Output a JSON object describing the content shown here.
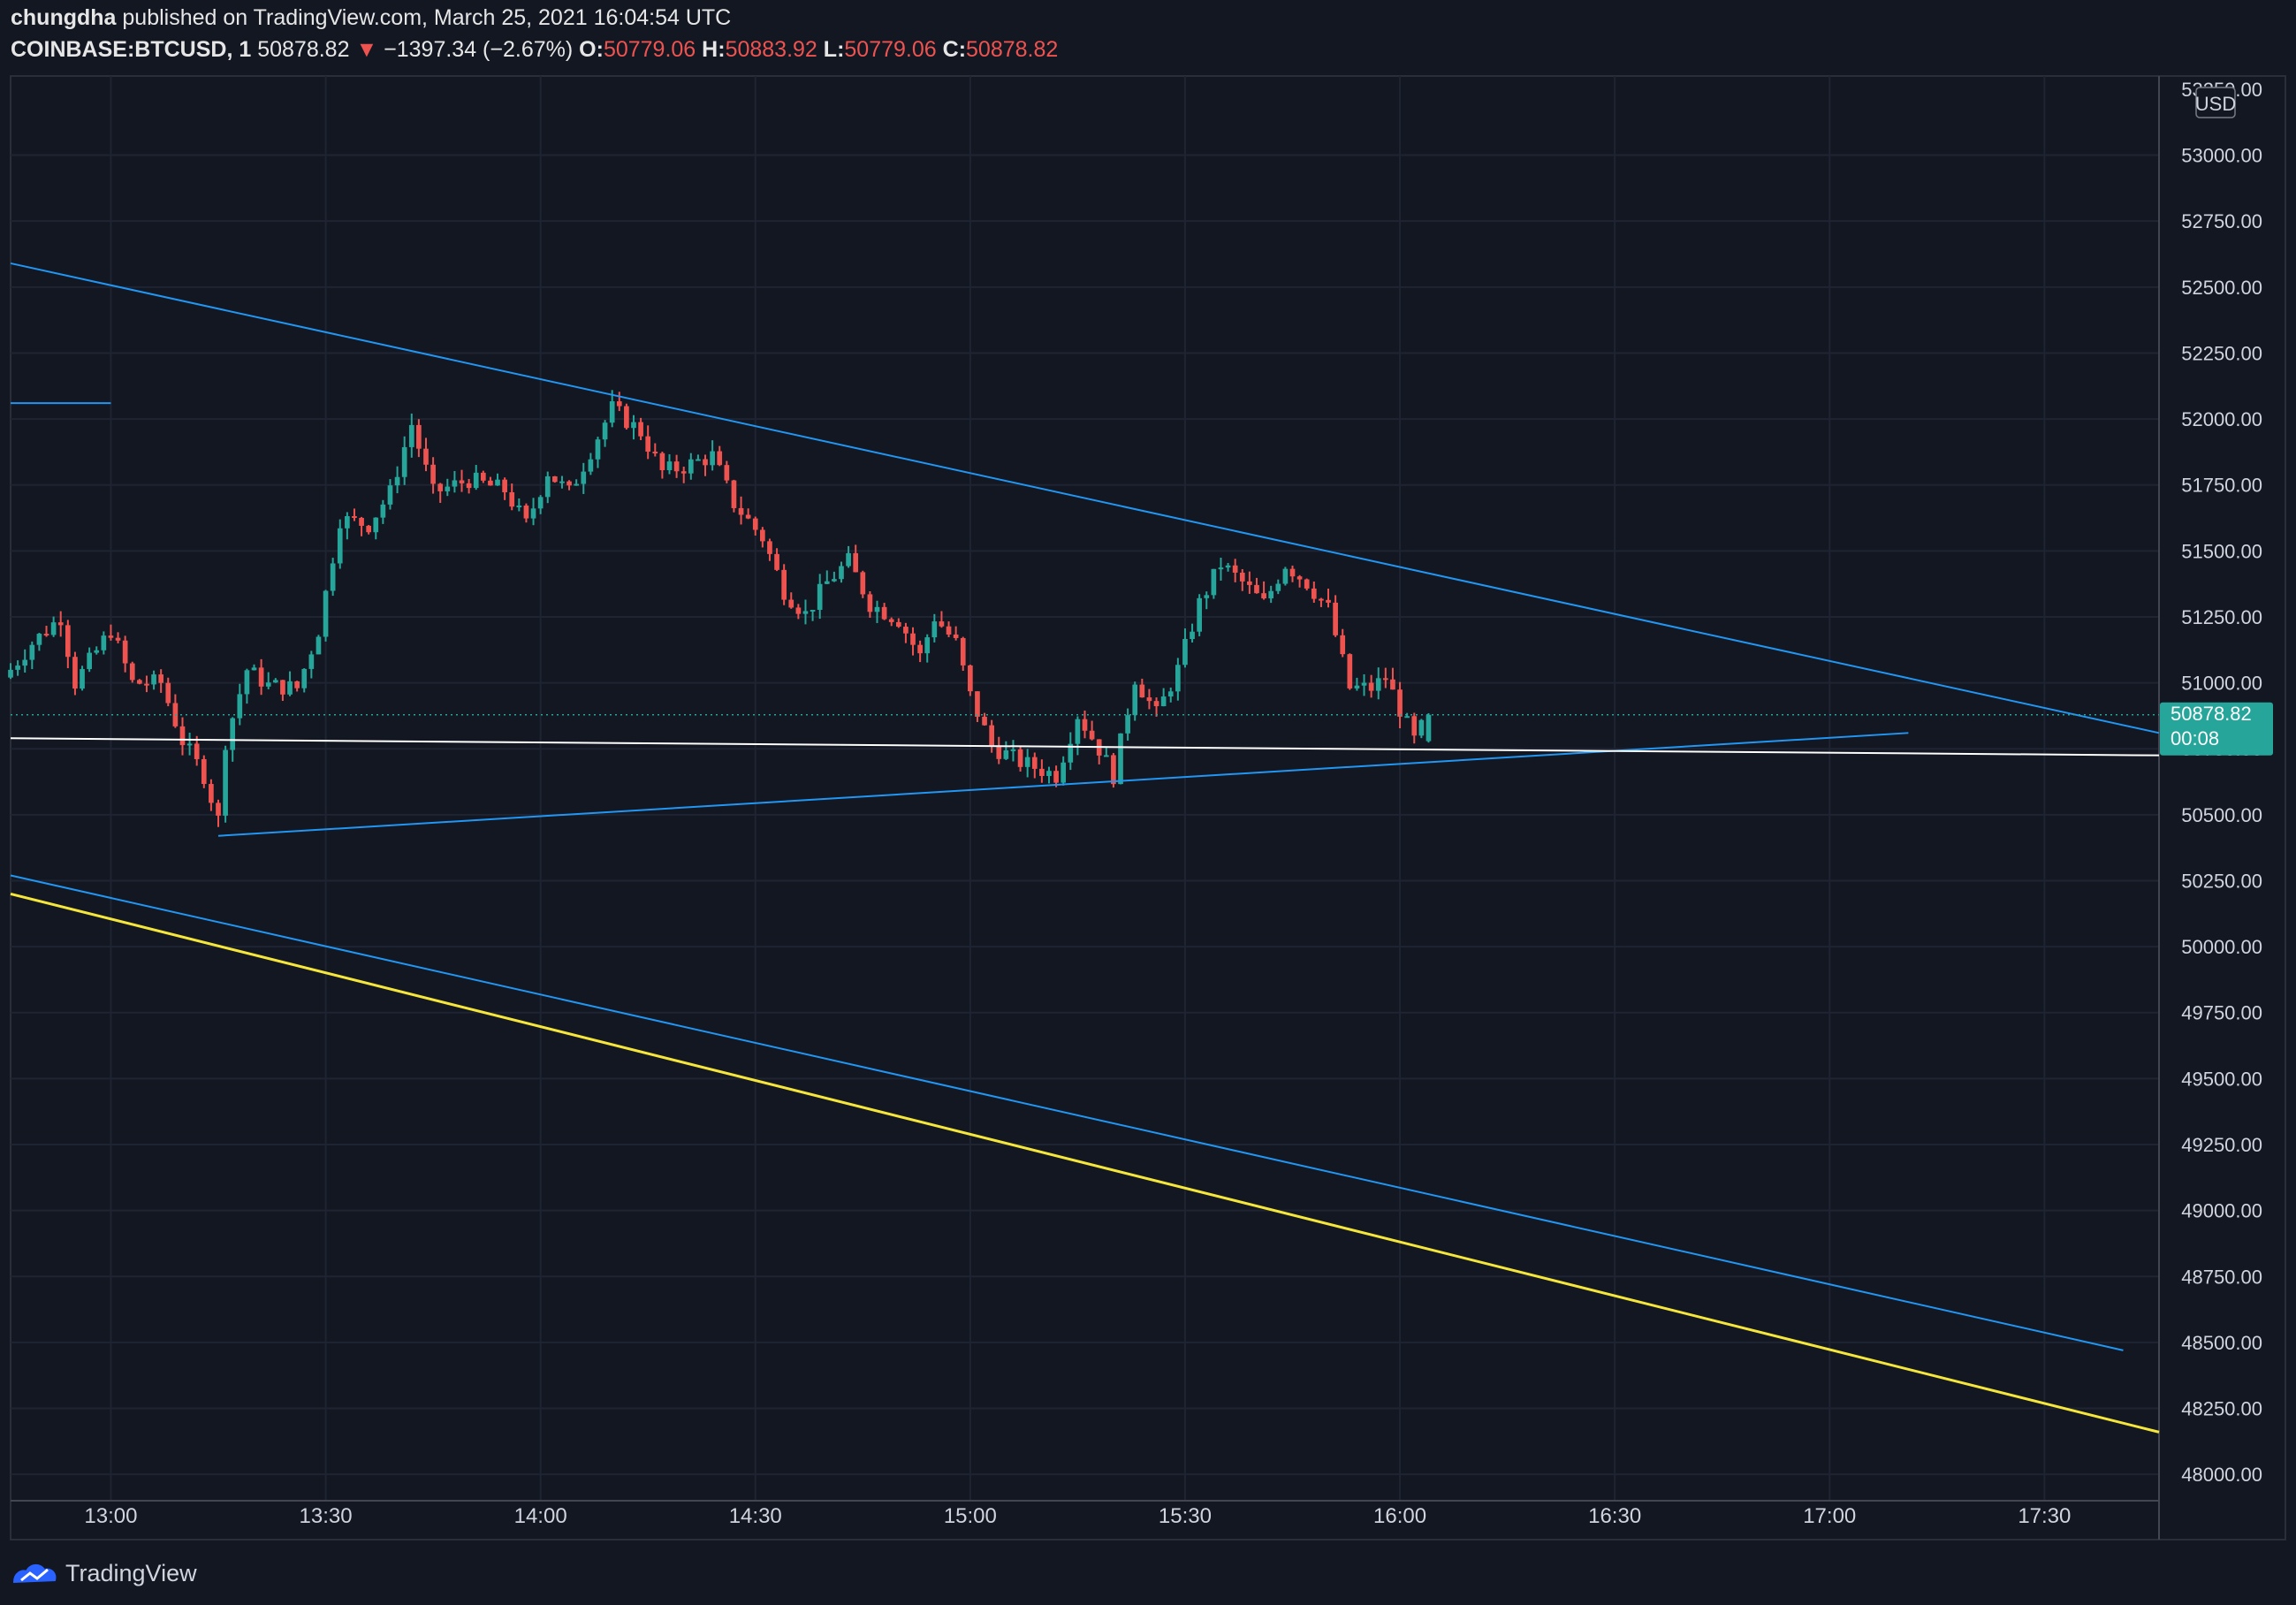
{
  "header": {
    "publisher": "chungdha",
    "published_text": "published on TradingView.com, March 25, 2021 16:04:54 UTC",
    "symbol": "COINBASE:BTCUSD, 1",
    "last": "50878.82",
    "change_arrow": "▼",
    "change": "−1397.34 (−2.67%)",
    "o_label": "O:",
    "o_value": "50779.06",
    "h_label": "H:",
    "h_value": "50883.92",
    "l_label": "L:",
    "l_value": "50779.06",
    "c_label": "C:",
    "c_value": "50878.82"
  },
  "price_scale": {
    "currency": "USD",
    "current_price": "50878.82",
    "countdown": "00:08",
    "top_partial_label": "53250.00"
  },
  "footer": {
    "brand": "TradingView"
  },
  "colors": {
    "background": "#131722",
    "up": "#26a69a",
    "down": "#ef5350",
    "trendline": "#2196f3",
    "yellow_line": "#f5e63c",
    "white_line": "#ffffff"
  },
  "chart_data": {
    "type": "candlestick",
    "symbol": "COINBASE:BTCUSD",
    "interval": "1",
    "currency": "USD",
    "x_start": "12:46",
    "x_end": "17:46",
    "x_ticks": [
      "13:00",
      "13:30",
      "14:00",
      "14:30",
      "15:00",
      "15:30",
      "16:00",
      "16:30",
      "17:00",
      "17:30"
    ],
    "ylim": [
      47900,
      53300
    ],
    "y_ticks": [
      48000,
      48250,
      48500,
      48750,
      49000,
      49250,
      49500,
      49750,
      50000,
      50250,
      50500,
      50750,
      51000,
      51250,
      51500,
      51750,
      52000,
      52250,
      52500,
      52750,
      53000
    ],
    "y_tick_labels": [
      "48000.00",
      "48250.00",
      "48500.00",
      "48750.00",
      "49000.00",
      "49250.00",
      "49500.00",
      "49750.00",
      "50000.00",
      "50250.00",
      "50500.00",
      "50750.00",
      "51000.00",
      "51250.00",
      "51500.00",
      "51750.00",
      "52000.00",
      "52250.00",
      "52500.00",
      "52750.00",
      "53000.00"
    ],
    "last_price": 50878.82,
    "ohlc_anchors": [
      {
        "time": "12:46",
        "close": 51050
      },
      {
        "time": "12:49",
        "close": 51150
      },
      {
        "time": "12:53",
        "close": 51250
      },
      {
        "time": "12:55",
        "close": 51000
      },
      {
        "time": "13:00",
        "close": 51200
      },
      {
        "time": "13:03",
        "close": 51000
      },
      {
        "time": "13:07",
        "close": 51000
      },
      {
        "time": "13:10",
        "close": 50780
      },
      {
        "time": "13:13",
        "close": 50650
      },
      {
        "time": "13:15",
        "close": 50480
      },
      {
        "time": "13:16",
        "close": 50780
      },
      {
        "time": "13:19",
        "close": 51050
      },
      {
        "time": "13:22",
        "close": 50990
      },
      {
        "time": "13:26",
        "close": 50980
      },
      {
        "time": "13:29",
        "close": 51200
      },
      {
        "time": "13:32",
        "close": 51620
      },
      {
        "time": "13:36",
        "close": 51600
      },
      {
        "time": "13:39",
        "close": 51720
      },
      {
        "time": "13:42",
        "close": 51980
      },
      {
        "time": "13:45",
        "close": 51720
      },
      {
        "time": "13:50",
        "close": 51770
      },
      {
        "time": "13:55",
        "close": 51730
      },
      {
        "time": "13:58",
        "close": 51600
      },
      {
        "time": "14:01",
        "close": 51800
      },
      {
        "time": "14:04",
        "close": 51720
      },
      {
        "time": "14:07",
        "close": 51880
      },
      {
        "time": "14:10",
        "close": 52040
      },
      {
        "time": "14:14",
        "close": 51950
      },
      {
        "time": "14:17",
        "close": 51800
      },
      {
        "time": "14:20",
        "close": 51820
      },
      {
        "time": "14:24",
        "close": 51860
      },
      {
        "time": "14:27",
        "close": 51680
      },
      {
        "time": "14:31",
        "close": 51550
      },
      {
        "time": "14:34",
        "close": 51350
      },
      {
        "time": "14:37",
        "close": 51260
      },
      {
        "time": "14:40",
        "close": 51380
      },
      {
        "time": "14:43",
        "close": 51460
      },
      {
        "time": "14:46",
        "close": 51300
      },
      {
        "time": "14:50",
        "close": 51240
      },
      {
        "time": "14:53",
        "close": 51100
      },
      {
        "time": "14:55",
        "close": 51250
      },
      {
        "time": "14:58",
        "close": 51150
      },
      {
        "time": "15:00",
        "close": 50950
      },
      {
        "time": "15:03",
        "close": 50760
      },
      {
        "time": "15:07",
        "close": 50700
      },
      {
        "time": "15:12",
        "close": 50650
      },
      {
        "time": "15:15",
        "close": 50880
      },
      {
        "time": "15:18",
        "close": 50750
      },
      {
        "time": "15:20",
        "close": 50650
      },
      {
        "time": "15:23",
        "close": 51020
      },
      {
        "time": "15:26",
        "close": 50880
      },
      {
        "time": "15:29",
        "close": 51050
      },
      {
        "time": "15:32",
        "close": 51300
      },
      {
        "time": "15:35",
        "close": 51450
      },
      {
        "time": "15:38",
        "close": 51380
      },
      {
        "time": "15:41",
        "close": 51300
      },
      {
        "time": "15:44",
        "close": 51450
      },
      {
        "time": "15:47",
        "close": 51380
      },
      {
        "time": "15:50",
        "close": 51280
      },
      {
        "time": "15:53",
        "close": 50980
      },
      {
        "time": "15:56",
        "close": 50980
      },
      {
        "time": "15:58",
        "close": 51020
      },
      {
        "time": "16:00",
        "close": 50900
      },
      {
        "time": "16:02",
        "close": 50780
      },
      {
        "time": "16:04",
        "close": 50879
      }
    ],
    "drawings": [
      {
        "kind": "trendline",
        "color": "#2196f3",
        "from": {
          "time": "12:46",
          "price": 52590
        },
        "to": {
          "time": "17:46",
          "price": 50810
        }
      },
      {
        "kind": "trendline",
        "color": "#2196f3",
        "from": {
          "time": "13:15",
          "price": 50420
        },
        "to": {
          "time": "17:11",
          "price": 50810
        }
      },
      {
        "kind": "trendline",
        "color": "#2196f3",
        "from": {
          "time": "12:46",
          "price": 50270
        },
        "to": {
          "time": "17:41",
          "price": 48470
        }
      },
      {
        "kind": "trendline",
        "color": "#f5e63c",
        "from": {
          "time": "12:46",
          "price": 50200
        },
        "to": {
          "time": "17:46",
          "price": 48160
        }
      },
      {
        "kind": "trendline",
        "color": "#ffffff",
        "from": {
          "time": "12:46",
          "price": 50790
        },
        "to": {
          "time": "17:46",
          "price": 50725
        }
      },
      {
        "kind": "horizontal_segment",
        "color": "#2196f3",
        "from": {
          "time": "12:46",
          "price": 52060
        },
        "to": {
          "time": "13:00",
          "price": 52060
        }
      }
    ]
  }
}
